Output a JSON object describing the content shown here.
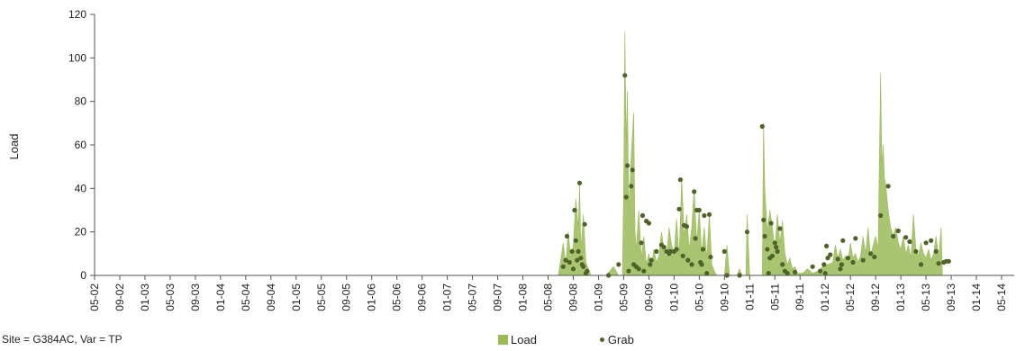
{
  "chart_data": {
    "type": "area",
    "ylabel": "Load",
    "ylim": [
      0,
      120
    ],
    "yticks": [
      0,
      20,
      40,
      60,
      80,
      100,
      120
    ],
    "x_tick_labels": [
      "05-02",
      "09-02",
      "01-03",
      "05-03",
      "09-03",
      "01-04",
      "05-04",
      "09-04",
      "01-05",
      "05-05",
      "09-05",
      "01-06",
      "05-06",
      "09-06",
      "01-07",
      "05-07",
      "09-07",
      "01-08",
      "05-08",
      "09-08",
      "01-09",
      "05-09",
      "09-09",
      "01-10",
      "05-10",
      "09-10",
      "01-11",
      "05-11",
      "09-11",
      "01-12",
      "05-12",
      "09-12",
      "01-13",
      "05-13",
      "09-13",
      "01-14",
      "05-14"
    ],
    "grid": false,
    "legend_position": "bottom",
    "colors": {
      "load": "#9bbb59",
      "grab": "#4f6228"
    },
    "series": [
      {
        "name": "Load",
        "type": "area",
        "points": [
          [
            18.4,
            0
          ],
          [
            18.5,
            7
          ],
          [
            18.6,
            15
          ],
          [
            18.7,
            5
          ],
          [
            18.8,
            20
          ],
          [
            18.9,
            8
          ],
          [
            19.0,
            14
          ],
          [
            19.1,
            35
          ],
          [
            19.2,
            22
          ],
          [
            19.25,
            42
          ],
          [
            19.3,
            12
          ],
          [
            19.4,
            28
          ],
          [
            19.5,
            6
          ],
          [
            19.6,
            3
          ],
          [
            19.7,
            0
          ],
          [
            20.3,
            0
          ],
          [
            20.6,
            4
          ],
          [
            20.8,
            0
          ],
          [
            20.95,
            0
          ],
          [
            21.0,
            40
          ],
          [
            21.05,
            112
          ],
          [
            21.1,
            60
          ],
          [
            21.15,
            85
          ],
          [
            21.2,
            30
          ],
          [
            21.3,
            55
          ],
          [
            21.4,
            75
          ],
          [
            21.45,
            20
          ],
          [
            21.5,
            12
          ],
          [
            21.6,
            30
          ],
          [
            21.7,
            8
          ],
          [
            21.8,
            18
          ],
          [
            21.9,
            5
          ],
          [
            22.0,
            10
          ],
          [
            22.1,
            4
          ],
          [
            22.2,
            12
          ],
          [
            22.3,
            6
          ],
          [
            22.4,
            9
          ],
          [
            22.5,
            20
          ],
          [
            22.6,
            12
          ],
          [
            22.7,
            8
          ],
          [
            22.8,
            22
          ],
          [
            22.9,
            14
          ],
          [
            23.0,
            10
          ],
          [
            23.1,
            26
          ],
          [
            23.2,
            8
          ],
          [
            23.3,
            45
          ],
          [
            23.4,
            18
          ],
          [
            23.5,
            28
          ],
          [
            23.6,
            12
          ],
          [
            23.7,
            22
          ],
          [
            23.8,
            40
          ],
          [
            23.9,
            15
          ],
          [
            24.0,
            30
          ],
          [
            24.1,
            10
          ],
          [
            24.2,
            22
          ],
          [
            24.3,
            8
          ],
          [
            24.4,
            28
          ],
          [
            24.5,
            5
          ],
          [
            24.6,
            2
          ],
          [
            24.7,
            0
          ],
          [
            25.0,
            0
          ],
          [
            25.1,
            14
          ],
          [
            25.2,
            0
          ],
          [
            25.5,
            0
          ],
          [
            25.6,
            3
          ],
          [
            25.7,
            0
          ],
          [
            25.85,
            0
          ],
          [
            25.9,
            28
          ],
          [
            26.0,
            0
          ],
          [
            26.5,
            0
          ],
          [
            26.55,
            70
          ],
          [
            26.6,
            40
          ],
          [
            26.7,
            20
          ],
          [
            26.8,
            30
          ],
          [
            26.9,
            22
          ],
          [
            27.0,
            12
          ],
          [
            27.1,
            28
          ],
          [
            27.2,
            15
          ],
          [
            27.3,
            25
          ],
          [
            27.4,
            10
          ],
          [
            27.5,
            5
          ],
          [
            27.6,
            8
          ],
          [
            27.7,
            3
          ],
          [
            27.8,
            4
          ],
          [
            27.9,
            1
          ],
          [
            28.1,
            1
          ],
          [
            28.3,
            3
          ],
          [
            28.5,
            1
          ],
          [
            28.7,
            2
          ],
          [
            28.9,
            4
          ],
          [
            29.1,
            5
          ],
          [
            29.3,
            6
          ],
          [
            29.4,
            14
          ],
          [
            29.5,
            8
          ],
          [
            29.6,
            12
          ],
          [
            29.7,
            7
          ],
          [
            29.8,
            9
          ],
          [
            29.9,
            6
          ],
          [
            30.0,
            15
          ],
          [
            30.1,
            8
          ],
          [
            30.2,
            10
          ],
          [
            30.3,
            6
          ],
          [
            30.4,
            9
          ],
          [
            30.5,
            18
          ],
          [
            30.6,
            10
          ],
          [
            30.7,
            22
          ],
          [
            30.8,
            9
          ],
          [
            30.9,
            14
          ],
          [
            31.0,
            18
          ],
          [
            31.1,
            12
          ],
          [
            31.2,
            93
          ],
          [
            31.25,
            50
          ],
          [
            31.3,
            60
          ],
          [
            31.35,
            45
          ],
          [
            31.4,
            42
          ],
          [
            31.5,
            30
          ],
          [
            31.6,
            22
          ],
          [
            31.7,
            18
          ],
          [
            31.8,
            22
          ],
          [
            31.9,
            15
          ],
          [
            32.0,
            12
          ],
          [
            32.1,
            18
          ],
          [
            32.2,
            10
          ],
          [
            32.3,
            14
          ],
          [
            32.4,
            8
          ],
          [
            32.5,
            28
          ],
          [
            32.6,
            12
          ],
          [
            32.7,
            9
          ],
          [
            32.8,
            15
          ],
          [
            32.9,
            10
          ],
          [
            33.0,
            8
          ],
          [
            33.1,
            12
          ],
          [
            33.2,
            7
          ],
          [
            33.3,
            10
          ],
          [
            33.4,
            18
          ],
          [
            33.5,
            8
          ],
          [
            33.6,
            22
          ],
          [
            33.65,
            0
          ]
        ]
      },
      {
        "name": "Grab",
        "type": "scatter",
        "points": [
          [
            18.6,
            4
          ],
          [
            18.7,
            7
          ],
          [
            18.75,
            18
          ],
          [
            18.85,
            6
          ],
          [
            18.95,
            11
          ],
          [
            19.0,
            3
          ],
          [
            19.05,
            30
          ],
          [
            19.1,
            16
          ],
          [
            19.15,
            7
          ],
          [
            19.2,
            11
          ],
          [
            19.25,
            42.5
          ],
          [
            19.3,
            8
          ],
          [
            19.35,
            5
          ],
          [
            19.4,
            4
          ],
          [
            19.45,
            23.5
          ],
          [
            19.5,
            1
          ],
          [
            19.55,
            2
          ],
          [
            20.4,
            0
          ],
          [
            20.8,
            5
          ],
          [
            21.05,
            92
          ],
          [
            21.1,
            36
          ],
          [
            21.15,
            50.5
          ],
          [
            21.2,
            2
          ],
          [
            21.3,
            41
          ],
          [
            21.35,
            48.5
          ],
          [
            21.4,
            5
          ],
          [
            21.5,
            4
          ],
          [
            21.6,
            3
          ],
          [
            21.7,
            15
          ],
          [
            21.75,
            27.5
          ],
          [
            21.8,
            2
          ],
          [
            21.9,
            25
          ],
          [
            22.0,
            24
          ],
          [
            22.05,
            5
          ],
          [
            22.1,
            7
          ],
          [
            22.3,
            11
          ],
          [
            22.5,
            14
          ],
          [
            22.6,
            13
          ],
          [
            22.7,
            11
          ],
          [
            22.8,
            10
          ],
          [
            22.85,
            11
          ],
          [
            23.0,
            11
          ],
          [
            23.1,
            12
          ],
          [
            23.2,
            30.5
          ],
          [
            23.25,
            44
          ],
          [
            23.35,
            9
          ],
          [
            23.4,
            23
          ],
          [
            23.5,
            22.5
          ],
          [
            23.55,
            7
          ],
          [
            23.7,
            5
          ],
          [
            23.8,
            38.5
          ],
          [
            23.85,
            17
          ],
          [
            23.9,
            30
          ],
          [
            24.0,
            30
          ],
          [
            24.05,
            6
          ],
          [
            24.1,
            5
          ],
          [
            24.15,
            12
          ],
          [
            24.2,
            27.5
          ],
          [
            24.3,
            1
          ],
          [
            24.4,
            28
          ],
          [
            24.45,
            8.5
          ],
          [
            25.0,
            11
          ],
          [
            25.1,
            0
          ],
          [
            25.6,
            0
          ],
          [
            25.9,
            20
          ],
          [
            26.5,
            68.5
          ],
          [
            26.55,
            25.5
          ],
          [
            26.6,
            18
          ],
          [
            26.7,
            12
          ],
          [
            26.75,
            1
          ],
          [
            26.8,
            8
          ],
          [
            26.85,
            24
          ],
          [
            26.9,
            9
          ],
          [
            27.0,
            15
          ],
          [
            27.05,
            13
          ],
          [
            27.1,
            11
          ],
          [
            27.2,
            21.5
          ],
          [
            27.3,
            5
          ],
          [
            27.4,
            2
          ],
          [
            27.5,
            1
          ],
          [
            27.8,
            1.5
          ],
          [
            28.5,
            4
          ],
          [
            28.8,
            2
          ],
          [
            28.95,
            5
          ],
          [
            29.0,
            1
          ],
          [
            29.05,
            13.5
          ],
          [
            29.1,
            8
          ],
          [
            29.2,
            9.5
          ],
          [
            29.5,
            7.5
          ],
          [
            29.6,
            3
          ],
          [
            29.65,
            5
          ],
          [
            29.7,
            16
          ],
          [
            29.9,
            8
          ],
          [
            30.1,
            6
          ],
          [
            30.2,
            17
          ],
          [
            30.5,
            7
          ],
          [
            30.8,
            10
          ],
          [
            30.95,
            8.5
          ],
          [
            31.2,
            27.5
          ],
          [
            31.5,
            41
          ],
          [
            31.7,
            18
          ],
          [
            31.9,
            20.5
          ],
          [
            32.2,
            17.5
          ],
          [
            32.35,
            15.5
          ],
          [
            32.6,
            11
          ],
          [
            32.8,
            5
          ],
          [
            33.0,
            15
          ],
          [
            33.2,
            16
          ],
          [
            33.4,
            11
          ],
          [
            33.5,
            5.5
          ],
          [
            33.7,
            6
          ],
          [
            33.8,
            6.5
          ],
          [
            33.9,
            6.5
          ]
        ]
      }
    ]
  },
  "footer": {
    "site_var": "Site = G384AC, Var = TP"
  },
  "legend": {
    "load_label": "Load",
    "grab_label": "Grab"
  }
}
